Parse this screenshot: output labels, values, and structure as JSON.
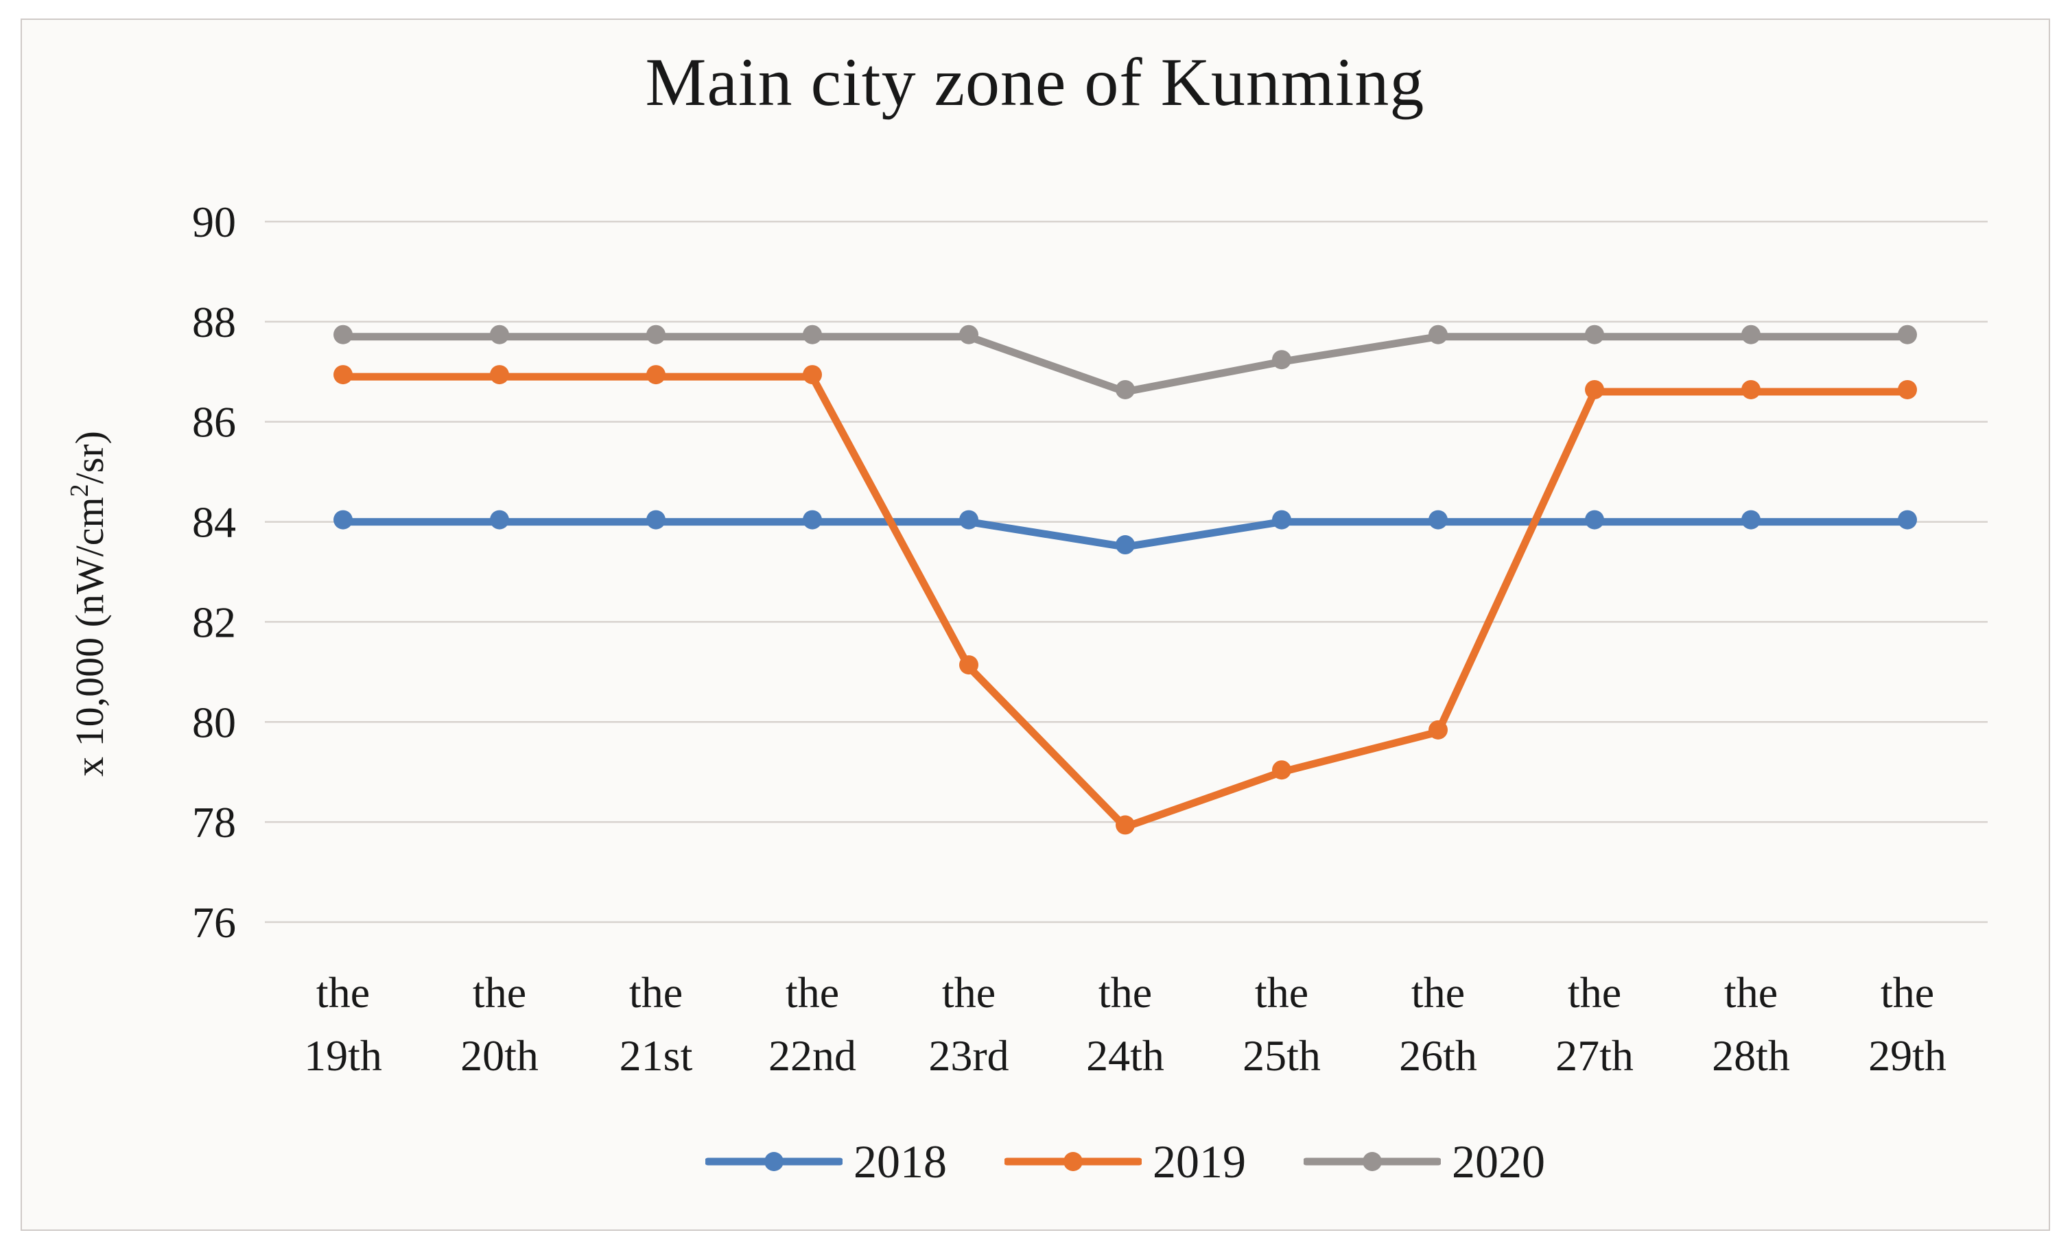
{
  "figure": {
    "background": "#fbfaf8",
    "border_color": "#cfcac7",
    "text_color": "#181818"
  },
  "chart_data": {
    "type": "line",
    "title": "Main city zone of Kunming",
    "categories": [
      "the 19th",
      "the 20th",
      "the 21st",
      "the 22nd",
      "the 23rd",
      "the 24th",
      "the 25th",
      "the 26th",
      "the 27th",
      "the 28th",
      "the 29th"
    ],
    "series": [
      {
        "name": "2018",
        "color": "#4d7ebb",
        "values": [
          84.0,
          84.0,
          84.0,
          84.0,
          84.0,
          83.5,
          84.0,
          84.0,
          84.0,
          84.0,
          84.0
        ]
      },
      {
        "name": "2019",
        "color": "#e9732d",
        "values": [
          86.9,
          86.9,
          86.9,
          86.9,
          81.1,
          77.9,
          79.0,
          79.8,
          86.6,
          86.6,
          86.6
        ]
      },
      {
        "name": "2020",
        "color": "#989391",
        "values": [
          87.7,
          87.7,
          87.7,
          87.7,
          87.7,
          86.6,
          87.2,
          87.7,
          87.7,
          87.7,
          87.7
        ]
      }
    ],
    "xlabel": "",
    "ylabel": "x 10,000 (nW/cm²/sr)",
    "ylabel_parts": {
      "prefix": "x 10,000  (nW/cm",
      "superscript": "2",
      "suffix": "/sr)"
    },
    "ylim": [
      76,
      90
    ],
    "yticks": [
      90,
      88,
      86,
      84,
      82,
      80,
      78,
      76
    ],
    "ytick_step": 2,
    "grid": "horizontal",
    "gridline_color": "#d7d2ce",
    "legend_position": "bottom",
    "legend_entries": [
      "2018",
      "2019",
      "2020"
    ]
  }
}
